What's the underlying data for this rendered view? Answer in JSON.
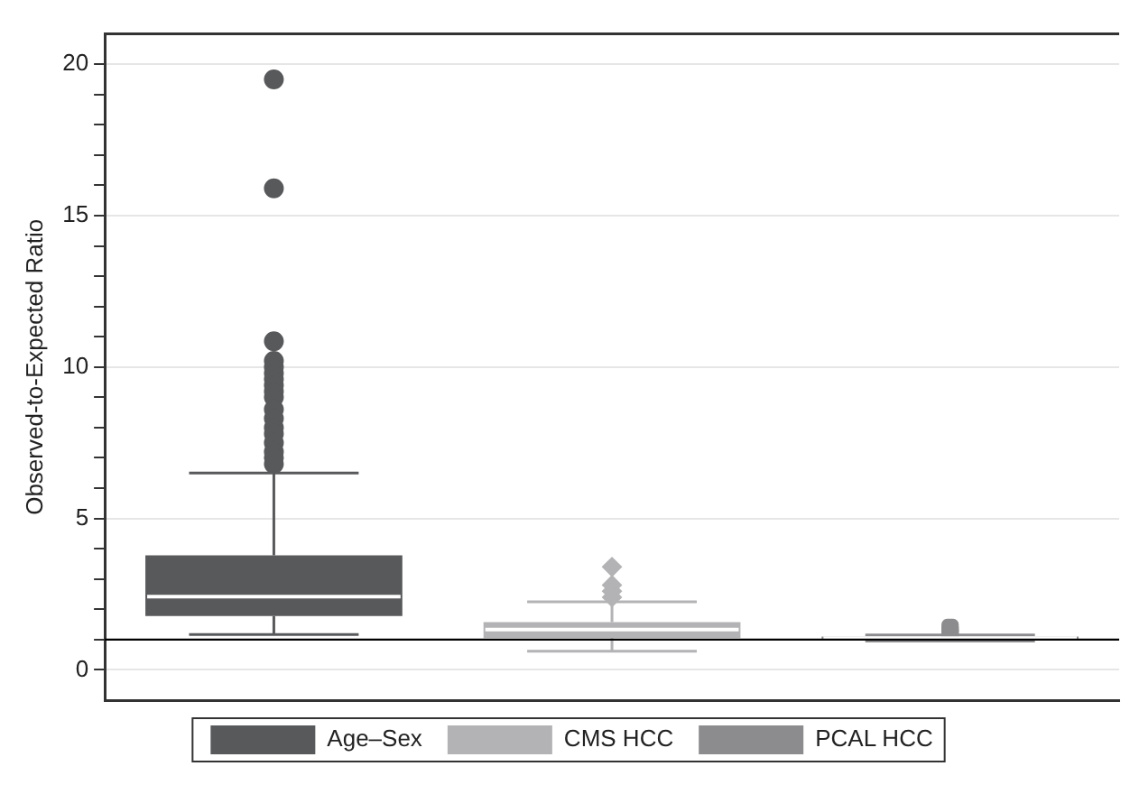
{
  "chart_data": {
    "type": "box",
    "ylabel": "Observed-to-Expected Ratio",
    "categories": [
      null,
      null,
      null
    ],
    "ylim": [
      -1,
      21
    ],
    "yticks": [
      0,
      {
        "value": 1,
        "label": null
      },
      {
        "value": 2,
        "label": null
      },
      {
        "value": 3,
        "label": null
      },
      {
        "value": 4,
        "label": null
      },
      5,
      {
        "value": 6,
        "label": null
      },
      {
        "value": 7,
        "label": null
      },
      {
        "value": 8,
        "label": null
      },
      {
        "value": 9,
        "label": null
      },
      10,
      {
        "value": 11,
        "label": null
      },
      {
        "value": 12,
        "label": null
      },
      {
        "value": 13,
        "label": null
      },
      {
        "value": 14,
        "label": null
      },
      15,
      {
        "value": 16,
        "label": null
      },
      {
        "value": 17,
        "label": null
      },
      {
        "value": 18,
        "label": null
      },
      {
        "value": 19,
        "label": null
      },
      20
    ],
    "grid": "y",
    "legend": "bottom",
    "ref_lines": [
      {
        "axis": "y",
        "value": 1,
        "color": "#000000"
      }
    ],
    "series": [
      {
        "name": "Age–Sex",
        "color": "#58595b",
        "marker": "circle",
        "boxes": [
          {
            "low": 1.17,
            "q1": 1.78,
            "median": 2.42,
            "q3": 3.78,
            "high": 6.5,
            "outliers": [
              19.5,
              15.9,
              10.85,
              10.2,
              10.0,
              9.8,
              9.6,
              9.4,
              9.2,
              9.0,
              8.6,
              8.3,
              8.0,
              7.8,
              7.5,
              7.2,
              7.0,
              6.8
            ]
          },
          null,
          null
        ]
      },
      {
        "name": "CMS HCC",
        "color": "#b3b3b5",
        "marker": "diamond",
        "boxes": [
          null,
          {
            "low": 0.62,
            "q1": 1.05,
            "median": 1.33,
            "q3": 1.58,
            "high": 2.25,
            "outliers": [
              3.4,
              2.8,
              2.6,
              2.4
            ]
          },
          null
        ]
      },
      {
        "name": "PCAL HCC",
        "color": "#8c8c8e",
        "marker": "square",
        "boxes": [
          null,
          null,
          {
            "low": 0.95,
            "q1": 1.0,
            "median": 1.05,
            "q3": 1.1,
            "high": 1.15,
            "outliers": [
              1.4,
              1.3,
              1.2
            ]
          }
        ]
      }
    ]
  }
}
